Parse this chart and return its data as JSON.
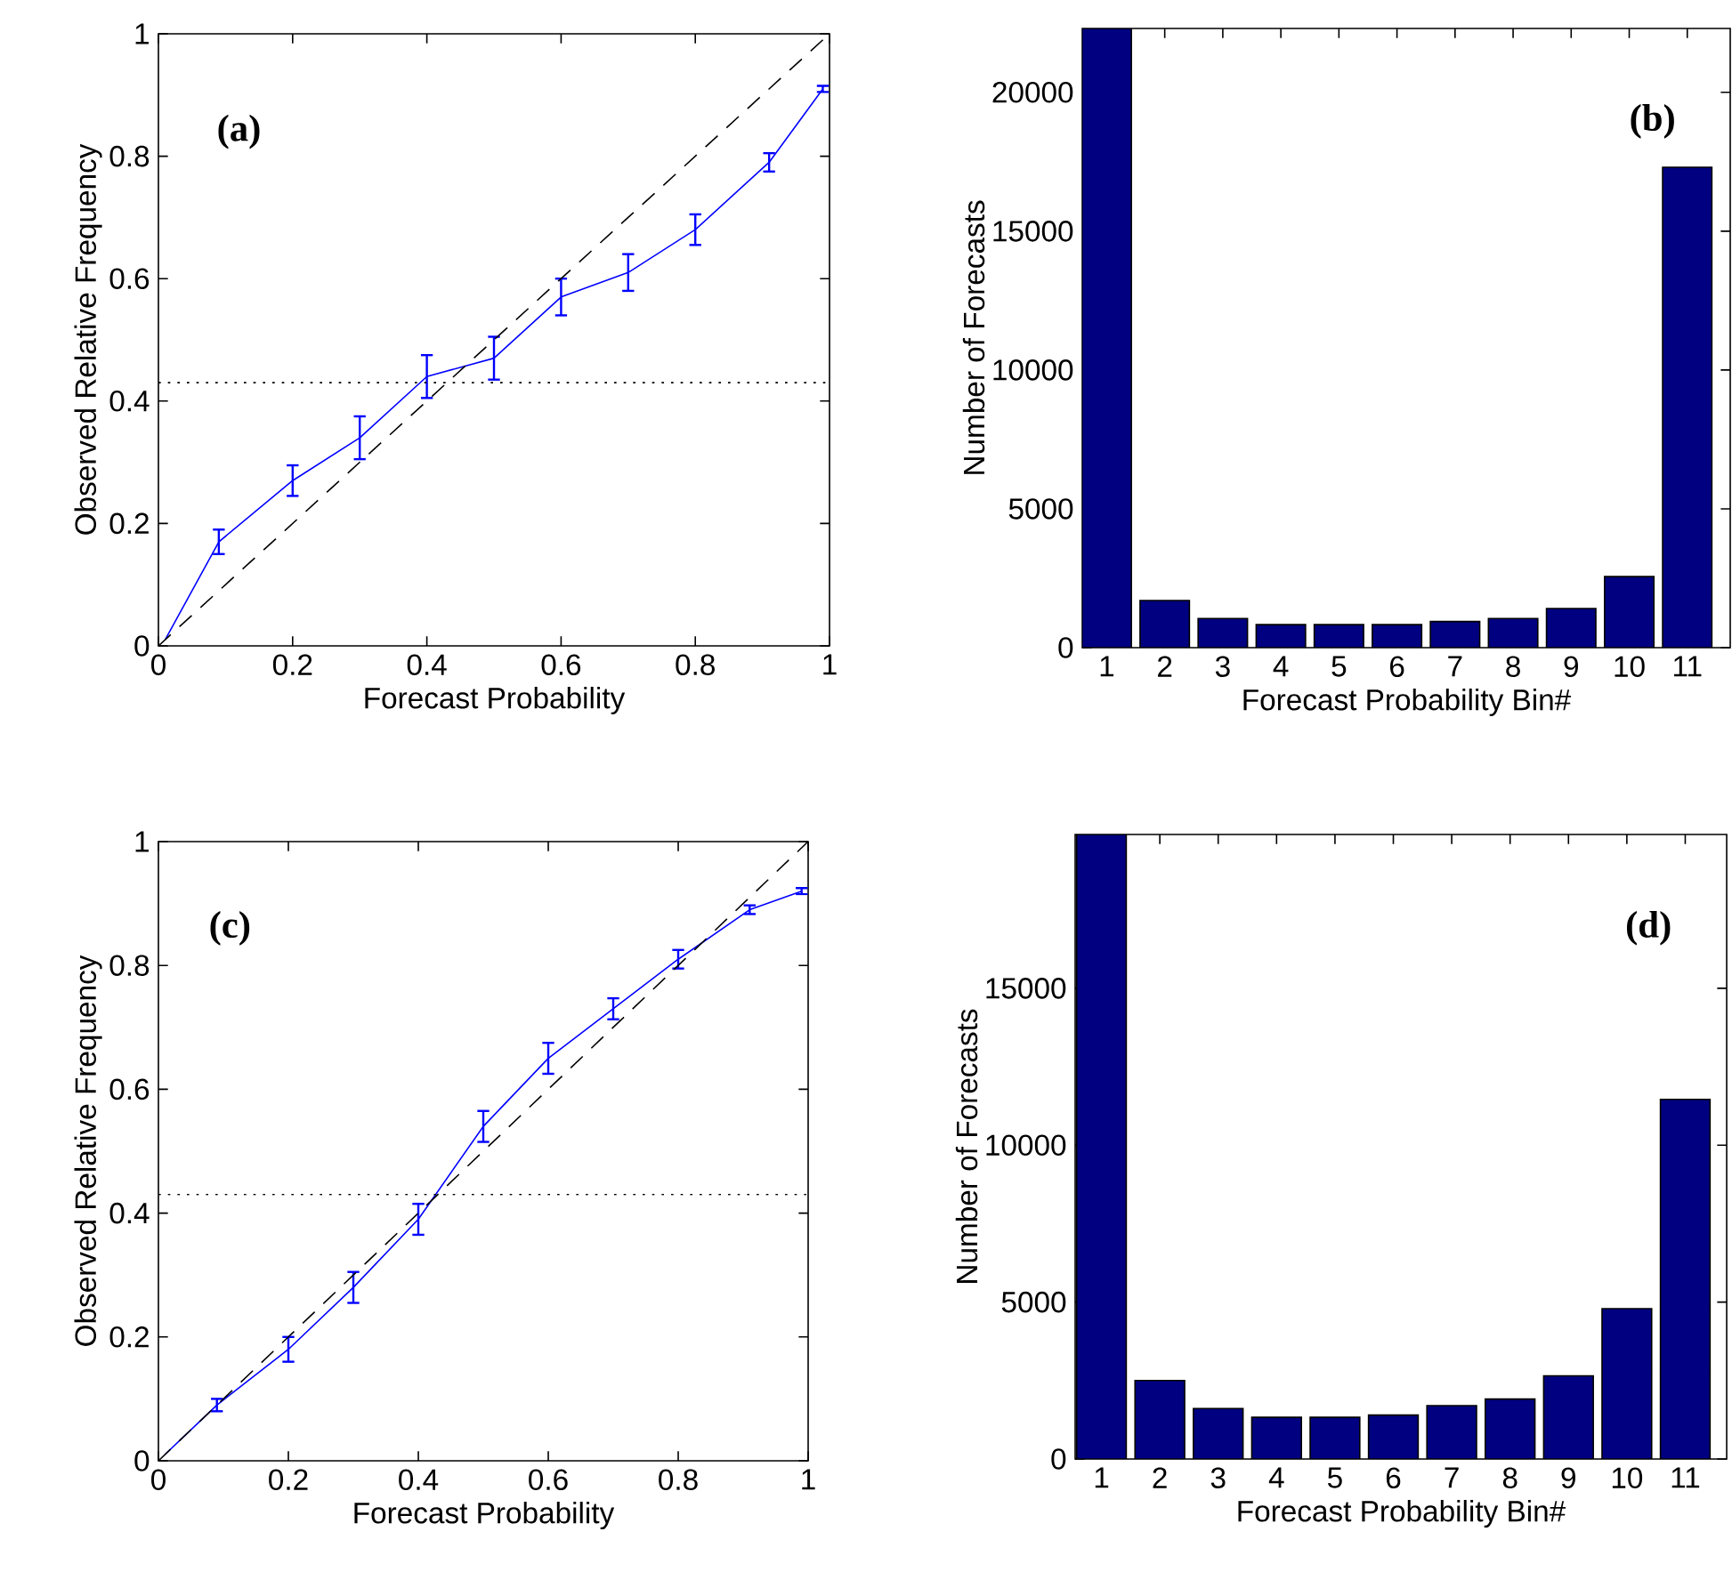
{
  "chart_data": [
    {
      "type": "line",
      "xlabel": "Forecast Probability",
      "ylabel": "Observed Relative Frequency",
      "annotations": [
        "(a)"
      ],
      "xlim": [
        0,
        1
      ],
      "ylim": [
        0,
        1
      ],
      "xticks": [
        0,
        0.2,
        0.4,
        0.6,
        0.8,
        1
      ],
      "yticks": [
        0,
        0.2,
        0.4,
        0.6,
        0.8,
        1
      ],
      "series": [
        {
          "color": "#0000ff",
          "x": [
            0.01,
            0.09,
            0.2,
            0.3,
            0.4,
            0.5,
            0.6,
            0.7,
            0.8,
            0.91,
            0.99
          ],
          "values": [
            0.01,
            0.17,
            0.27,
            0.34,
            0.44,
            0.47,
            0.57,
            0.61,
            0.68,
            0.79,
            0.91
          ],
          "errors": [
            null,
            0.02,
            0.025,
            0.035,
            0.035,
            0.035,
            0.03,
            0.03,
            0.025,
            0.015,
            0.005
          ]
        },
        {
          "color": "#000000",
          "line_style": "dashed",
          "x": [
            0,
            1
          ],
          "values": [
            0,
            1
          ]
        }
      ],
      "ref_lines": [
        {
          "axis": "y",
          "value": 0.43,
          "line_style": "dotted",
          "color": "#000000"
        }
      ]
    },
    {
      "type": "bar",
      "xlabel": "Forecast Probability Bin#",
      "ylabel": "Number of Forecasts",
      "annotations": [
        "(b)"
      ],
      "categories": [
        "1",
        "2",
        "3",
        "4",
        "5",
        "6",
        "7",
        "8",
        "9",
        "10",
        "11"
      ],
      "values": [
        22300,
        1700,
        1050,
        830,
        830,
        830,
        940,
        1050,
        1410,
        2560,
        17300
      ],
      "color": "#000080",
      "ylim": [
        0,
        22300
      ],
      "yticks": [
        0,
        5000,
        10000,
        15000,
        20000
      ]
    },
    {
      "type": "line",
      "xlabel": "Forecast Probability",
      "ylabel": "Observed Relative Frequency",
      "annotations": [
        "(c)"
      ],
      "xlim": [
        0,
        1
      ],
      "ylim": [
        0,
        1
      ],
      "xticks": [
        0,
        0.2,
        0.4,
        0.6,
        0.8,
        1
      ],
      "yticks": [
        0,
        0.2,
        0.4,
        0.6,
        0.8,
        1
      ],
      "series": [
        {
          "color": "#0000ff",
          "x": [
            0.01,
            0.09,
            0.2,
            0.3,
            0.4,
            0.5,
            0.6,
            0.7,
            0.8,
            0.91,
            0.99
          ],
          "values": [
            0.01,
            0.09,
            0.18,
            0.28,
            0.39,
            0.54,
            0.65,
            0.73,
            0.81,
            0.89,
            0.92
          ],
          "errors": [
            null,
            0.01,
            0.02,
            0.025,
            0.025,
            0.025,
            0.025,
            0.017,
            0.015,
            0.007,
            0.005
          ]
        },
        {
          "color": "#000000",
          "line_style": "dashed",
          "x": [
            0,
            1
          ],
          "values": [
            0,
            1
          ]
        }
      ],
      "ref_lines": [
        {
          "axis": "y",
          "value": 0.43,
          "line_style": "dotted",
          "color": "#000000"
        }
      ]
    },
    {
      "type": "bar",
      "xlabel": "Forecast Probability Bin#",
      "ylabel": "Number of Forecasts",
      "annotations": [
        "(d)"
      ],
      "categories": [
        "1",
        "2",
        "3",
        "4",
        "5",
        "6",
        "7",
        "8",
        "9",
        "10",
        "11"
      ],
      "values": [
        19900,
        2500,
        1610,
        1330,
        1330,
        1400,
        1700,
        1910,
        2650,
        4790,
        11460
      ],
      "color": "#000080",
      "ylim": [
        0,
        19900
      ],
      "yticks": [
        0,
        5000,
        10000,
        15000
      ]
    }
  ]
}
